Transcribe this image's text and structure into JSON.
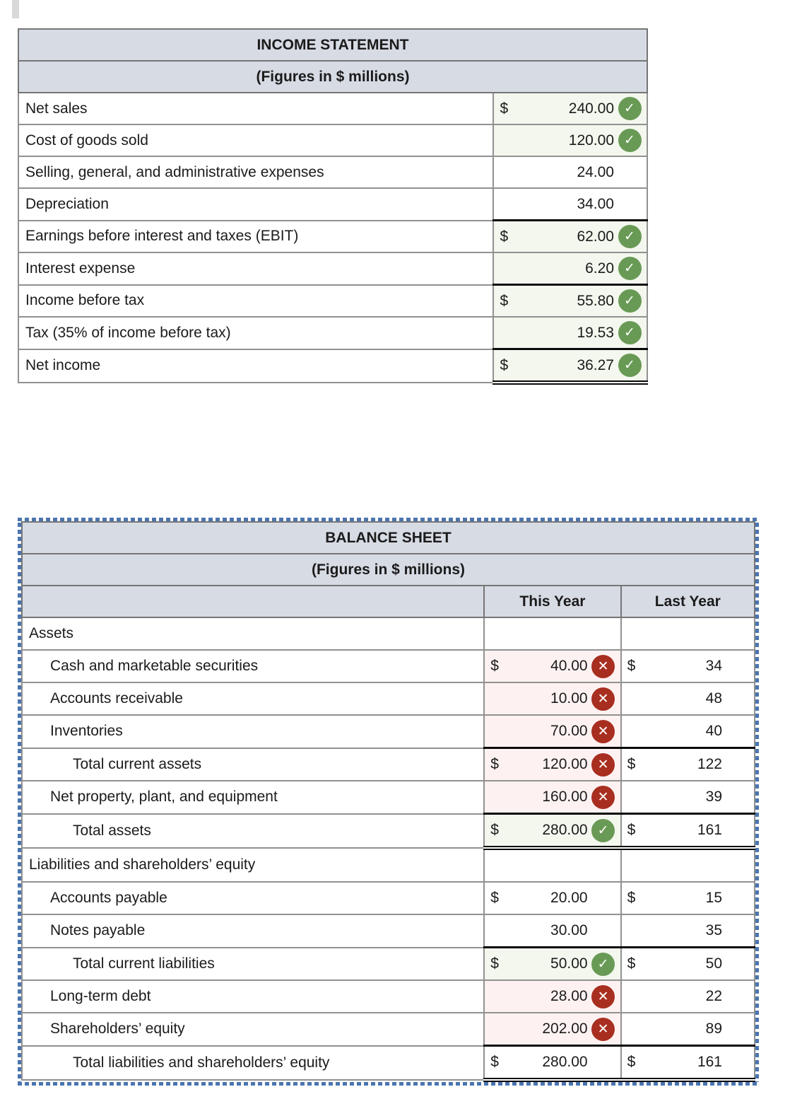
{
  "icons": {
    "check_glyph": "✓",
    "x_glyph": "✕"
  },
  "colors": {
    "header_bg": "#d7dbe4",
    "correct_cell_bg": "#f3f7ee",
    "incorrect_cell_bg": "#fdf2f1",
    "correct_icon": "#699a55",
    "incorrect_icon": "#a82e20",
    "selection_border_blue": "#4b75af"
  },
  "income_statement": {
    "title": "INCOME STATEMENT",
    "subtitle": "(Figures in $ millions)",
    "rows": [
      {
        "label": "Net sales",
        "dollar": "$",
        "value": "240.00",
        "status": "correct"
      },
      {
        "label": "Cost of goods sold",
        "value": "120.00",
        "status": "correct"
      },
      {
        "label": "Selling, general, and administrative expenses",
        "value": "24.00",
        "status": "none"
      },
      {
        "label": "Depreciation",
        "value": "34.00",
        "status": "none"
      },
      {
        "label": "Earnings before interest and taxes (EBIT)",
        "dollar": "$",
        "value": "62.00",
        "status": "correct"
      },
      {
        "label": "Interest expense",
        "value": "6.20",
        "status": "correct"
      },
      {
        "label": "Income before tax",
        "dollar": "$",
        "value": "55.80",
        "status": "correct"
      },
      {
        "label": "Tax (35% of income before tax)",
        "value": "19.53",
        "status": "correct"
      },
      {
        "label": "Net income",
        "dollar": "$",
        "value": "36.27",
        "status": "correct"
      }
    ]
  },
  "balance_sheet": {
    "title": "BALANCE SHEET",
    "subtitle": "(Figures in $ millions)",
    "columns": {
      "this_year": "This Year",
      "last_year": "Last Year"
    },
    "rows": [
      {
        "label": "Assets",
        "section": true
      },
      {
        "label": "Cash and marketable securities",
        "ty_dollar": "$",
        "ty_value": "40.00",
        "ty_status": "incorrect",
        "ly_dollar": "$",
        "ly_value": "34"
      },
      {
        "label": "Accounts receivable",
        "ty_value": "10.00",
        "ty_status": "incorrect",
        "ly_value": "48"
      },
      {
        "label": "Inventories",
        "ty_value": "70.00",
        "ty_status": "incorrect",
        "ly_value": "40"
      },
      {
        "label": "Total current assets",
        "ty_dollar": "$",
        "ty_value": "120.00",
        "ty_status": "incorrect",
        "ly_dollar": "$",
        "ly_value": "122"
      },
      {
        "label": "Net property, plant, and equipment",
        "ty_value": "160.00",
        "ty_status": "incorrect",
        "ly_value": "39"
      },
      {
        "label": "Total assets",
        "ty_dollar": "$",
        "ty_value": "280.00",
        "ty_status": "correct",
        "ly_dollar": "$",
        "ly_value": "161"
      },
      {
        "label": "Liabilities and shareholders’ equity",
        "section": true
      },
      {
        "label": "Accounts payable",
        "ty_dollar": "$",
        "ty_value": "20.00",
        "ty_status": "none",
        "ly_dollar": "$",
        "ly_value": "15"
      },
      {
        "label": "Notes payable",
        "ty_value": "30.00",
        "ty_status": "none",
        "ly_value": "35"
      },
      {
        "label": "Total current liabilities",
        "ty_dollar": "$",
        "ty_value": "50.00",
        "ty_status": "correct",
        "ly_dollar": "$",
        "ly_value": "50"
      },
      {
        "label": "Long-term debt",
        "ty_value": "28.00",
        "ty_status": "incorrect",
        "ly_value": "22"
      },
      {
        "label": "Shareholders’ equity",
        "ty_value": "202.00",
        "ty_status": "incorrect",
        "ly_value": "89"
      },
      {
        "label": "Total liabilities and shareholders’ equity",
        "ty_dollar": "$",
        "ty_value": "280.00",
        "ty_status": "none",
        "ly_dollar": "$",
        "ly_value": "161"
      }
    ]
  }
}
